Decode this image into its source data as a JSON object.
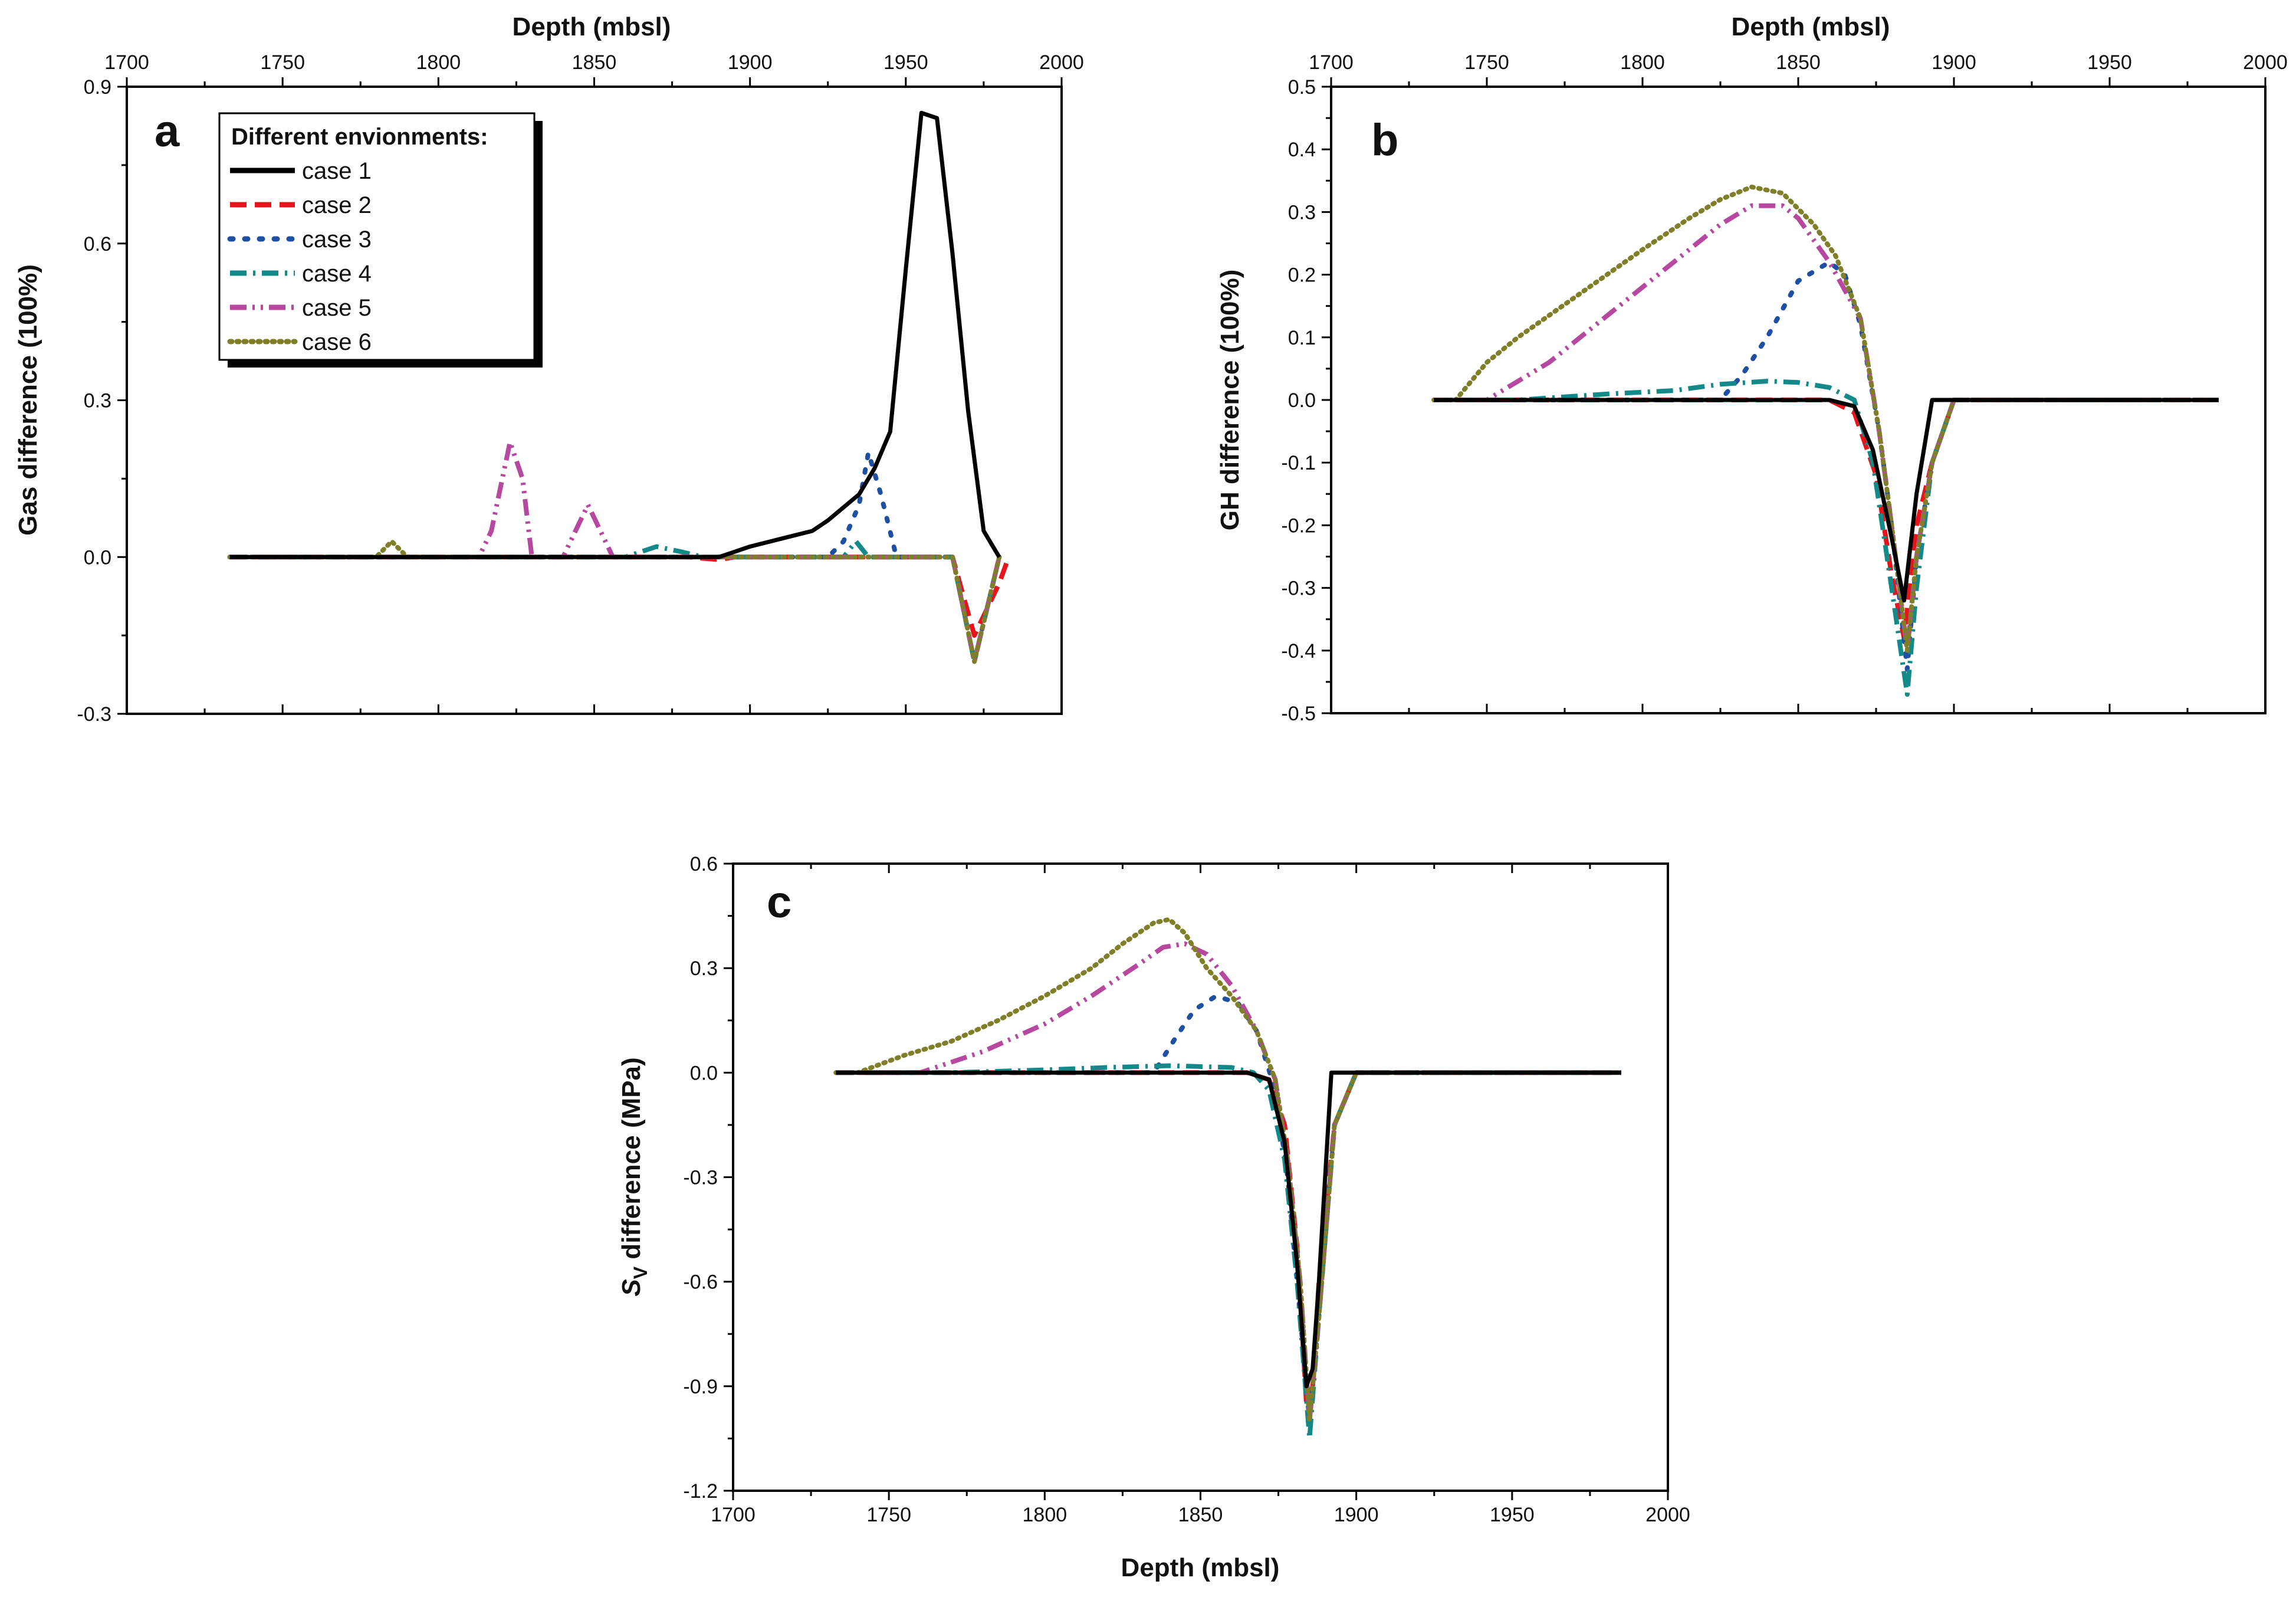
{
  "colors": {
    "case1": "#000000",
    "case2": "#e8141b",
    "case3": "#1f4fa3",
    "case4": "#14898a",
    "case5": "#b6489f",
    "case6": "#7f7f2a"
  },
  "legend": {
    "title": "Different envionments:",
    "entries": [
      "case 1",
      "case 2",
      "case 3",
      "case 4",
      "case 5",
      "case 6"
    ]
  },
  "chart_data": [
    {
      "id": "a",
      "type": "line",
      "panel_label": "a",
      "xlabel": "Depth (mbsl)",
      "ylabel": "Gas difference (100%)",
      "x_axis_position": "top",
      "xlim": [
        1700,
        2000
      ],
      "ylim": [
        -0.3,
        0.9
      ],
      "xticks": [
        1700,
        1750,
        1800,
        1850,
        1900,
        1950,
        2000
      ],
      "xtick_labels": [
        "1700",
        "1750",
        "1800",
        "1850",
        "1900",
        "1950",
        "2000"
      ],
      "yticks": [
        -0.3,
        0.0,
        0.3,
        0.6,
        0.9
      ],
      "ytick_labels": [
        "-0.3",
        "0.0",
        "0.3",
        "0.6",
        "0.9"
      ],
      "legend": "top-left",
      "series": [
        {
          "name": "case 1",
          "x": [
            1733,
            1890,
            1895,
            1900,
            1910,
            1920,
            1925,
            1930,
            1935,
            1940,
            1945,
            1950,
            1955,
            1960,
            1965,
            1970,
            1975,
            1980
          ],
          "y": [
            0,
            0,
            0.01,
            0.02,
            0.035,
            0.05,
            0.07,
            0.095,
            0.12,
            0.17,
            0.24,
            0.55,
            0.85,
            0.84,
            0.58,
            0.28,
            0.05,
            0
          ]
        },
        {
          "name": "case 2",
          "x": [
            1733,
            1880,
            1890,
            1895,
            1900,
            1965,
            1972,
            1976,
            1980,
            1983
          ],
          "y": [
            0,
            0,
            -0.005,
            0,
            0,
            0,
            -0.15,
            -0.1,
            -0.05,
            0
          ]
        },
        {
          "name": "case 3",
          "x": [
            1733,
            1925,
            1930,
            1935,
            1938,
            1942,
            1947,
            1965,
            1972,
            1980
          ],
          "y": [
            0,
            0,
            0.03,
            0.1,
            0.2,
            0.12,
            0,
            0,
            -0.2,
            0
          ]
        },
        {
          "name": "case 4",
          "x": [
            1733,
            1860,
            1870,
            1878,
            1885,
            1930,
            1934,
            1938,
            1965,
            1972,
            1980
          ],
          "y": [
            0,
            0,
            0.02,
            0.01,
            0,
            0,
            0.03,
            0,
            0,
            -0.2,
            0
          ]
        },
        {
          "name": "case 5",
          "x": [
            1733,
            1813,
            1817,
            1823,
            1827,
            1830,
            1840,
            1848,
            1852,
            1856,
            1965,
            1972,
            1980
          ],
          "y": [
            0,
            0,
            0.05,
            0.22,
            0.15,
            0,
            0,
            0.1,
            0.05,
            0,
            0,
            -0.2,
            0
          ]
        },
        {
          "name": "case 6",
          "x": [
            1733,
            1780,
            1785,
            1790,
            1965,
            1972,
            1980
          ],
          "y": [
            0,
            0,
            0.03,
            0,
            0,
            -0.2,
            0
          ]
        }
      ]
    },
    {
      "id": "b",
      "type": "line",
      "panel_label": "b",
      "xlabel": "Depth (mbsl)",
      "ylabel": "GH difference (100%)",
      "x_axis_position": "top",
      "xlim": [
        1700,
        2000
      ],
      "ylim": [
        -0.5,
        0.5
      ],
      "xticks": [
        1700,
        1750,
        1800,
        1850,
        1900,
        1950,
        2000
      ],
      "xtick_labels": [
        "1700",
        "1750",
        "1800",
        "1850",
        "1900",
        "1950",
        "2000"
      ],
      "yticks": [
        -0.5,
        -0.4,
        -0.3,
        -0.2,
        -0.1,
        0.0,
        0.1,
        0.2,
        0.3,
        0.4,
        0.5
      ],
      "ytick_labels": [
        "-0.5",
        "-0.4",
        "-0.3",
        "-0.2",
        "-0.1",
        "0.0",
        "0.1",
        "0.2",
        "0.3",
        "0.4",
        "0.5"
      ],
      "series": [
        {
          "name": "case 1",
          "x": [
            1733,
            1860,
            1868,
            1874,
            1880,
            1884,
            1888,
            1893,
            1985
          ],
          "y": [
            0,
            0,
            -0.01,
            -0.08,
            -0.22,
            -0.32,
            -0.15,
            0,
            0
          ]
        },
        {
          "name": "case 2",
          "x": [
            1733,
            1860,
            1868,
            1875,
            1880,
            1884,
            1888,
            1893,
            1900,
            1985
          ],
          "y": [
            0,
            0,
            -0.02,
            -0.12,
            -0.28,
            -0.38,
            -0.2,
            -0.1,
            0,
            0
          ]
        },
        {
          "name": "case 3",
          "x": [
            1733,
            1825,
            1832,
            1840,
            1850,
            1860,
            1865,
            1870,
            1876,
            1880,
            1885,
            1888,
            1893,
            1900,
            1985
          ],
          "y": [
            0,
            0,
            0.04,
            0.1,
            0.19,
            0.22,
            0.2,
            0.12,
            -0.05,
            -0.2,
            -0.43,
            -0.25,
            -0.1,
            0,
            0
          ]
        },
        {
          "name": "case 4",
          "x": [
            1733,
            1760,
            1790,
            1810,
            1825,
            1840,
            1850,
            1860,
            1868,
            1874,
            1880,
            1885,
            1888,
            1893,
            1900,
            1985
          ],
          "y": [
            0,
            0,
            0.01,
            0.015,
            0.025,
            0.03,
            0.028,
            0.02,
            0,
            -0.1,
            -0.3,
            -0.47,
            -0.3,
            -0.1,
            0,
            0
          ]
        },
        {
          "name": "case 5",
          "x": [
            1733,
            1750,
            1770,
            1790,
            1810,
            1825,
            1835,
            1845,
            1850,
            1860,
            1870,
            1876,
            1880,
            1885,
            1888,
            1893,
            1900,
            1985
          ],
          "y": [
            0,
            0,
            0.06,
            0.14,
            0.22,
            0.28,
            0.31,
            0.31,
            0.29,
            0.22,
            0.13,
            -0.05,
            -0.2,
            -0.4,
            -0.25,
            -0.1,
            0,
            0
          ]
        },
        {
          "name": "case 6",
          "x": [
            1733,
            1740,
            1750,
            1760,
            1780,
            1800,
            1815,
            1825,
            1835,
            1845,
            1855,
            1862,
            1870,
            1876,
            1880,
            1885,
            1888,
            1893,
            1900,
            1985
          ],
          "y": [
            0,
            0,
            0.06,
            0.1,
            0.17,
            0.24,
            0.29,
            0.32,
            0.34,
            0.33,
            0.28,
            0.23,
            0.13,
            -0.05,
            -0.2,
            -0.4,
            -0.25,
            -0.1,
            0,
            0
          ]
        }
      ]
    },
    {
      "id": "c",
      "type": "line",
      "panel_label": "c",
      "xlabel": "Depth (mbsl)",
      "ylabel": "Sv difference (MPa)",
      "ylabel_main": "S",
      "ylabel_sub": "V",
      "ylabel_rest": " difference (MPa)",
      "x_axis_position": "bottom",
      "xlim": [
        1700,
        2000
      ],
      "ylim": [
        -1.2,
        0.6
      ],
      "xticks": [
        1700,
        1750,
        1800,
        1850,
        1900,
        1950,
        2000
      ],
      "xtick_labels": [
        "1700",
        "1750",
        "1800",
        "1850",
        "1900",
        "1950",
        "2000"
      ],
      "yticks": [
        -1.2,
        -0.9,
        -0.6,
        -0.3,
        0.0,
        0.3,
        0.6
      ],
      "ytick_labels": [
        "-1.2",
        "-0.9",
        "-0.6",
        "-0.3",
        "0.0",
        "0.3",
        "0.6"
      ],
      "series": [
        {
          "name": "case 1",
          "x": [
            1733,
            1865,
            1872,
            1877,
            1881,
            1884,
            1886,
            1888,
            1892,
            1985
          ],
          "y": [
            0,
            0,
            -0.02,
            -0.2,
            -0.55,
            -0.9,
            -0.85,
            -0.6,
            0,
            0
          ]
        },
        {
          "name": "case 2",
          "x": [
            1733,
            1865,
            1872,
            1877,
            1881,
            1884,
            1886,
            1888,
            1893,
            1900,
            1985
          ],
          "y": [
            0,
            0,
            -0.02,
            -0.15,
            -0.5,
            -0.95,
            -0.9,
            -0.6,
            -0.15,
            0,
            0
          ]
        },
        {
          "name": "case 3",
          "x": [
            1733,
            1835,
            1842,
            1848,
            1855,
            1862,
            1868,
            1874,
            1878,
            1882,
            1885,
            1888,
            1893,
            1900,
            1985
          ],
          "y": [
            0,
            0,
            0.1,
            0.18,
            0.22,
            0.2,
            0.12,
            -0.05,
            -0.3,
            -0.7,
            -1.0,
            -0.7,
            -0.15,
            0,
            0
          ]
        },
        {
          "name": "case 4",
          "x": [
            1733,
            1770,
            1800,
            1820,
            1840,
            1860,
            1867,
            1872,
            1877,
            1881,
            1885,
            1888,
            1893,
            1900,
            1985
          ],
          "y": [
            0,
            0,
            0.008,
            0.015,
            0.02,
            0.015,
            0,
            -0.05,
            -0.25,
            -0.6,
            -1.05,
            -0.7,
            -0.15,
            0,
            0
          ]
        },
        {
          "name": "case 5",
          "x": [
            1733,
            1760,
            1780,
            1800,
            1815,
            1830,
            1838,
            1845,
            1852,
            1860,
            1868,
            1874,
            1878,
            1882,
            1885,
            1888,
            1893,
            1900,
            1985
          ],
          "y": [
            0,
            0,
            0.06,
            0.14,
            0.22,
            0.31,
            0.36,
            0.37,
            0.34,
            0.25,
            0.12,
            -0.02,
            -0.25,
            -0.6,
            -1.0,
            -0.7,
            -0.15,
            0,
            0
          ]
        },
        {
          "name": "case 6",
          "x": [
            1733,
            1740,
            1755,
            1770,
            1785,
            1800,
            1815,
            1825,
            1835,
            1840,
            1845,
            1852,
            1860,
            1868,
            1874,
            1878,
            1882,
            1885,
            1888,
            1893,
            1900,
            1985
          ],
          "y": [
            0,
            0,
            0.05,
            0.09,
            0.15,
            0.22,
            0.3,
            0.37,
            0.43,
            0.44,
            0.4,
            0.3,
            0.22,
            0.12,
            -0.02,
            -0.25,
            -0.6,
            -1.0,
            -0.7,
            -0.15,
            0,
            0
          ]
        }
      ]
    }
  ]
}
